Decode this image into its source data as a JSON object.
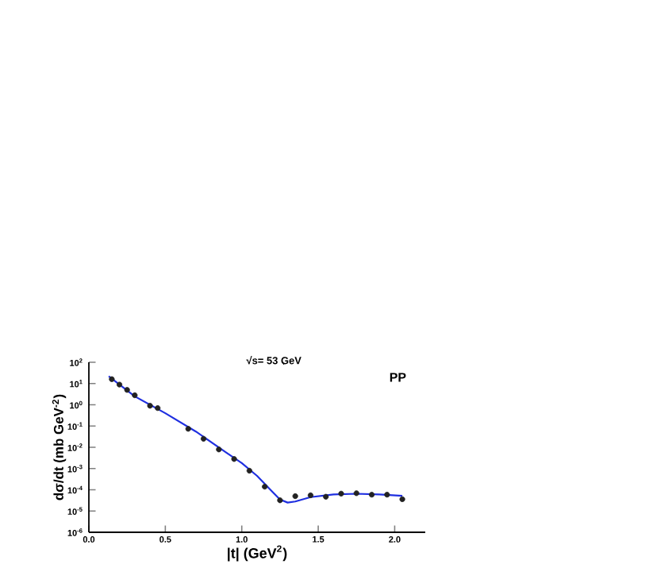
{
  "chart_data": {
    "type": "scatter",
    "title": "√s= 53 GeV",
    "xlabel": "|t| (GeV$^{2}$)",
    "ylabel": "dσ/dt (mb GeV$^{-2}$)",
    "annotations": [
      "PP"
    ],
    "log": "y",
    "xlim": [
      0,
      2.2
    ],
    "xticks": [
      {
        "value": 0,
        "label": "0.0"
      },
      0.5,
      {
        "value": 1,
        "label": "1.0"
      },
      1.5,
      {
        "value": 2,
        "label": "2.0"
      }
    ],
    "ylim": [
      1e-06,
      100
    ],
    "yticks": [
      {
        "value": 1e-06,
        "label": "10$^{-6}$"
      },
      {
        "value": 1e-05,
        "label": "10$^{-5}$"
      },
      {
        "value": 0.0001,
        "label": "10$^{-4}$"
      },
      {
        "value": 0.001,
        "label": "10$^{-3}$"
      },
      {
        "value": 0.01,
        "label": "10$^{-2}$"
      },
      {
        "value": 0.1,
        "label": "10$^{-1}$"
      },
      {
        "value": 1,
        "label": "10$^{0}$"
      },
      {
        "value": 10,
        "label": "10$^{1}$"
      },
      {
        "value": 100,
        "label": "10$^{2}$"
      }
    ],
    "series": [
      {
        "type": "line",
        "color": "#1f2fe0",
        "marker": "none",
        "x": [
          0.13,
          0.3,
          0.5,
          0.7,
          0.9,
          1.0,
          1.1,
          1.2,
          1.25,
          1.3,
          1.35,
          1.45,
          1.6,
          1.75,
          1.9,
          2.05
        ],
        "values": [
          22,
          2.5,
          0.4,
          0.055,
          0.0055,
          0.0018,
          0.00045,
          8e-05,
          3.5e-05,
          2.5e-05,
          2.8e-05,
          4.5e-05,
          6e-05,
          6.5e-05,
          6e-05,
          5.2e-05
        ]
      },
      {
        "color": "#222222",
        "marker": "circle",
        "x": [
          0.15,
          0.2,
          0.25,
          0.3,
          0.4,
          0.45,
          0.65,
          0.75,
          0.85,
          0.95,
          1.05,
          1.15,
          1.25,
          1.35,
          1.45,
          1.55,
          1.65,
          1.75,
          1.85,
          1.95,
          2.05
        ],
        "values": [
          16,
          8.9,
          5.0,
          2.8,
          0.9,
          0.7,
          0.074,
          0.025,
          0.0079,
          0.0028,
          0.00079,
          0.00014,
          3.2e-05,
          5e-05,
          5.5e-05,
          4.7e-05,
          6.6e-05,
          6.9e-05,
          5.9e-05,
          5.9e-05,
          3.6e-05
        ]
      }
    ]
  }
}
